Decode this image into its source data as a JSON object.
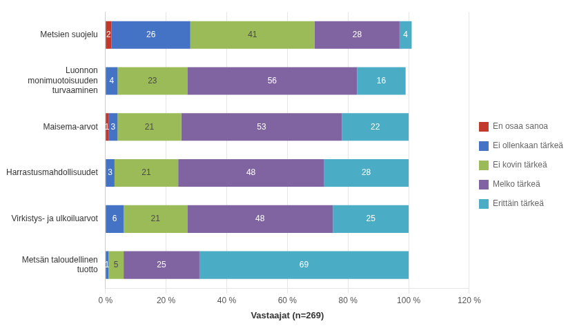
{
  "chart_data": {
    "type": "bar",
    "orientation": "horizontal",
    "stacked": true,
    "categories": [
      "Metsien suojelu",
      "Luonnon\nmonimuotoisuuden\nturvaaminen",
      "Maisema-arvot",
      "Harrastusmahdollisuudet",
      "Virkistys- ja ulkoiluarvot",
      "Metsän taloudellinen\ntuotto"
    ],
    "series": [
      {
        "name": "En osaa sanoa",
        "color": "#c0392b",
        "values": [
          2,
          0,
          1,
          0,
          0,
          0
        ]
      },
      {
        "name": "Ei ollenkaan tärkeä",
        "color": "#4472c4",
        "values": [
          26,
          4,
          3,
          3,
          6,
          1
        ]
      },
      {
        "name": "Ei kovin tärkeä",
        "color": "#9bbb59",
        "values": [
          41,
          23,
          21,
          21,
          21,
          5
        ]
      },
      {
        "name": "Melko tärkeä",
        "color": "#8064a2",
        "values": [
          28,
          56,
          53,
          48,
          48,
          25
        ]
      },
      {
        "name": "Erittäin tärkeä",
        "color": "#4bacc6",
        "values": [
          4,
          16,
          22,
          28,
          25,
          69
        ]
      }
    ],
    "xlabel": "Vastaajat (n=269)",
    "xlim": [
      0,
      120
    ],
    "xticks": [
      {
        "value": 0,
        "label": "0 %"
      },
      {
        "value": 20,
        "label": "20 %"
      },
      {
        "value": 40,
        "label": "40 %"
      },
      {
        "value": 60,
        "label": "60 %"
      },
      {
        "value": 80,
        "label": "80 %"
      },
      {
        "value": 100,
        "label": "100 %"
      },
      {
        "value": 120,
        "label": "120 %"
      }
    ],
    "grid": "x",
    "legend": "right",
    "data_labels": true
  }
}
